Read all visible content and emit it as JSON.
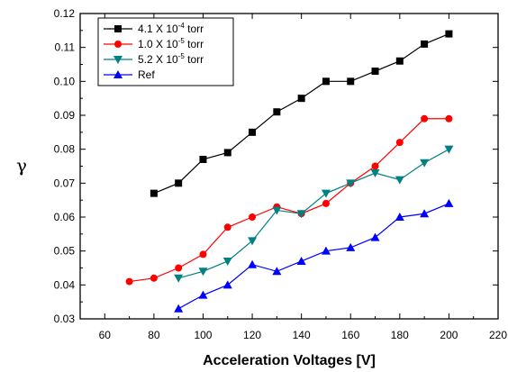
{
  "chart_data": {
    "type": "line",
    "xlabel": "Acceleration Voltages [V]",
    "ylabel": "γ",
    "xlim": [
      50,
      220
    ],
    "ylim": [
      0.03,
      0.12
    ],
    "xticks": [
      "60",
      "80",
      "100",
      "120",
      "140",
      "160",
      "180",
      "200",
      "220"
    ],
    "yticks": [
      "0.03",
      "0.04",
      "0.05",
      "0.06",
      "0.07",
      "0.08",
      "0.09",
      "0.10",
      "0.11",
      "0.12"
    ],
    "legend_position": "top-left",
    "grid": false,
    "series": [
      {
        "name": "4.1 X 10-4 torr",
        "legend_base": "4.1 X 10",
        "legend_exp": "-4",
        "legend_unit": " torr",
        "color": "#000000",
        "marker": "square",
        "x": [
          80,
          90,
          100,
          110,
          120,
          130,
          140,
          150,
          160,
          170,
          180,
          190,
          200
        ],
        "y": [
          0.067,
          0.07,
          0.077,
          0.079,
          0.085,
          0.091,
          0.095,
          0.1,
          0.1,
          0.103,
          0.106,
          0.111,
          0.114
        ]
      },
      {
        "name": "1.0 X 10-5 torr",
        "legend_base": "1.0 X 10",
        "legend_exp": "-5",
        "legend_unit": " torr",
        "color": "#ff0000",
        "marker": "circle",
        "x": [
          70,
          80,
          90,
          100,
          110,
          120,
          130,
          140,
          150,
          160,
          170,
          180,
          190,
          200
        ],
        "y": [
          0.041,
          0.042,
          0.045,
          0.049,
          0.057,
          0.06,
          0.063,
          0.061,
          0.064,
          0.07,
          0.075,
          0.082,
          0.089,
          0.089
        ]
      },
      {
        "name": "5.2 X 10-5 torr",
        "legend_base": "5.2 X 10",
        "legend_exp": "-5",
        "legend_unit": " torr",
        "color": "#008080",
        "marker": "triangle-down",
        "x": [
          90,
          100,
          110,
          120,
          130,
          140,
          150,
          160,
          170,
          180,
          190,
          200
        ],
        "y": [
          0.042,
          0.044,
          0.047,
          0.053,
          0.062,
          0.061,
          0.067,
          0.07,
          0.073,
          0.071,
          0.076,
          0.08
        ]
      },
      {
        "name": "Ref",
        "legend_base": "Ref",
        "legend_exp": "",
        "legend_unit": "",
        "color": "#0000ff",
        "marker": "triangle-up",
        "x": [
          90,
          100,
          110,
          120,
          130,
          140,
          150,
          160,
          170,
          180,
          190,
          200
        ],
        "y": [
          0.033,
          0.037,
          0.04,
          0.046,
          0.044,
          0.047,
          0.05,
          0.051,
          0.054,
          0.06,
          0.061,
          0.064
        ]
      }
    ]
  }
}
